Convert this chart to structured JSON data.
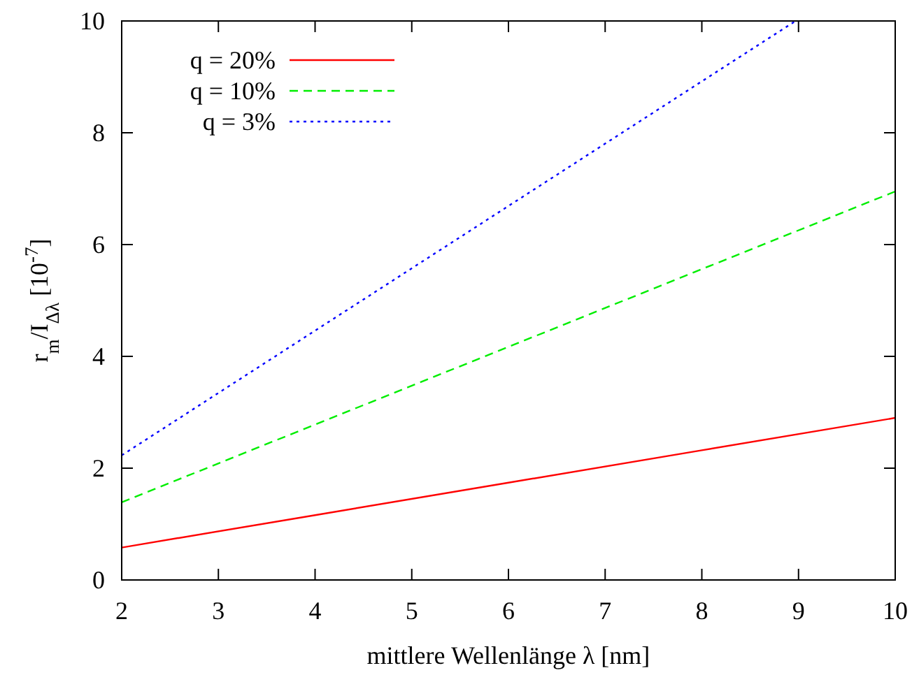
{
  "chart_data": {
    "type": "line",
    "xlabel": "mittlere Wellenlänge λ [nm]",
    "ylabel": "r$_{m}$/I$_{Δλ}$ [10$^{-7}$]",
    "xlim": [
      2,
      10
    ],
    "ylim": [
      0,
      10
    ],
    "xticks": [
      2,
      3,
      4,
      5,
      6,
      7,
      8,
      9,
      10
    ],
    "yticks": [
      0,
      2,
      4,
      6,
      8,
      10
    ],
    "grid": false,
    "legend": "top left",
    "series": [
      {
        "name": "q = 20%",
        "color": "#ff0000",
        "line_style": "solid",
        "x": [
          2,
          4,
          6,
          8,
          10
        ],
        "values": [
          0.58,
          1.16,
          1.74,
          2.32,
          2.9
        ]
      },
      {
        "name": "q = 10%",
        "color": "#00ee00",
        "line_style": "dashed",
        "x": [
          2,
          4,
          6,
          8,
          10
        ],
        "values": [
          1.39,
          2.78,
          4.17,
          5.56,
          6.95
        ]
      },
      {
        "name": "q = 3%",
        "color": "#0000ff",
        "line_style": "dotted",
        "x": [
          2,
          4,
          6,
          8,
          8.97
        ],
        "values": [
          2.23,
          4.46,
          6.69,
          8.92,
          10
        ]
      }
    ]
  }
}
